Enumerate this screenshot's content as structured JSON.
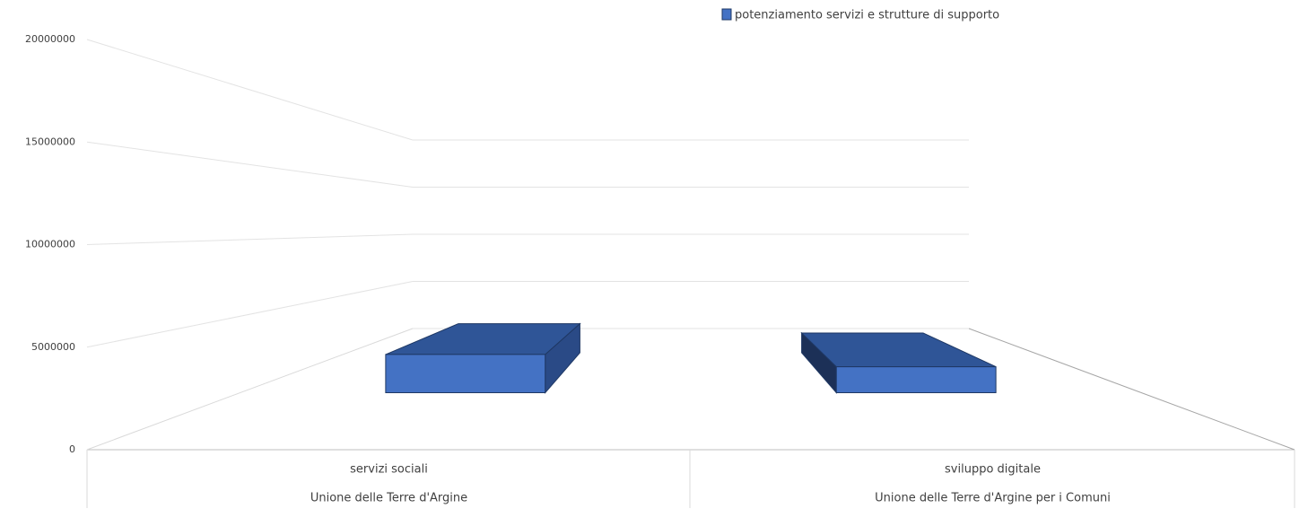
{
  "chart_data": {
    "type": "bar3d",
    "categories": [
      "servizi sociali",
      "sviluppo digitale"
    ],
    "category_groups": [
      "Unione delle Terre d'Argine",
      "Unione delle Terre d'Argine per i Comuni"
    ],
    "series": [
      {
        "name": "potenziamento servizi e strutture di supporto",
        "color": "#4472c4",
        "values": [
          2500000,
          1700000
        ]
      }
    ],
    "ylim": [
      0,
      20000000
    ],
    "yticks": [
      0,
      5000000,
      10000000,
      15000000,
      20000000
    ],
    "grid": true,
    "legend": "top"
  }
}
